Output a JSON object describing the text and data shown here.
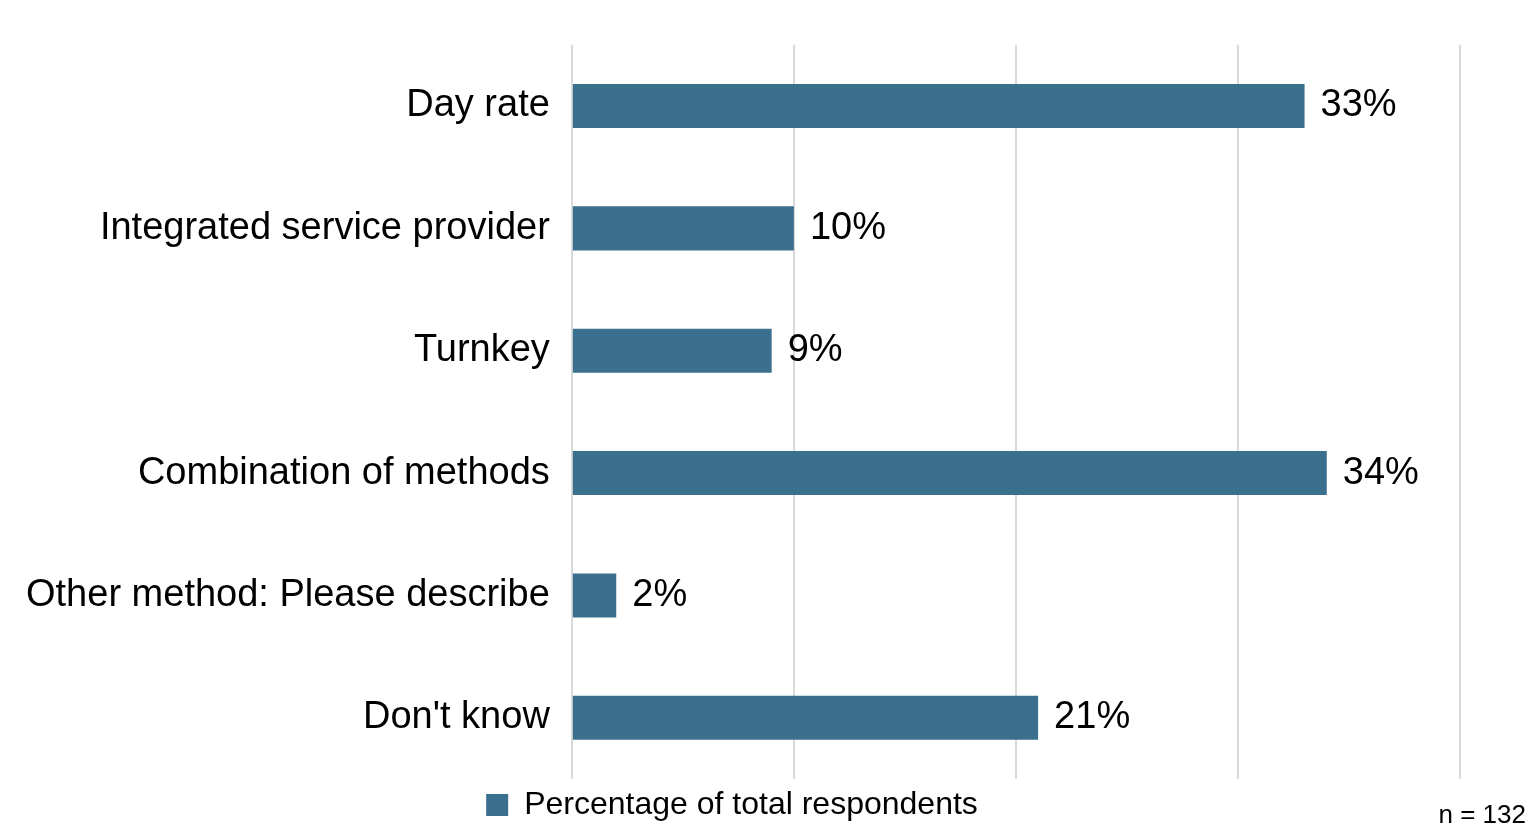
{
  "chart_data": {
    "type": "bar",
    "orientation": "horizontal",
    "categories": [
      "Day rate",
      "Integrated service provider",
      "Turnkey",
      "Combination of methods",
      "Other method: Please describe",
      "Don't know"
    ],
    "series": [
      {
        "name": "Percentage of total respondents",
        "color": "#3b6f8e",
        "values": [
          33,
          10,
          9,
          34,
          2,
          21
        ],
        "value_labels": [
          "33%",
          "10%",
          "9%",
          "34%",
          "2%",
          "21%"
        ]
      }
    ],
    "xlim": [
      0,
      40
    ],
    "xticks": [
      {
        "value": 0,
        "label": null
      },
      {
        "value": 10,
        "label": null
      },
      {
        "value": 20,
        "label": null
      },
      {
        "value": 30,
        "label": null
      },
      {
        "value": 40,
        "label": null
      }
    ],
    "tick_labels": "y",
    "grid": "x",
    "legend": "bottom",
    "annotations": [
      "n = 132"
    ]
  }
}
